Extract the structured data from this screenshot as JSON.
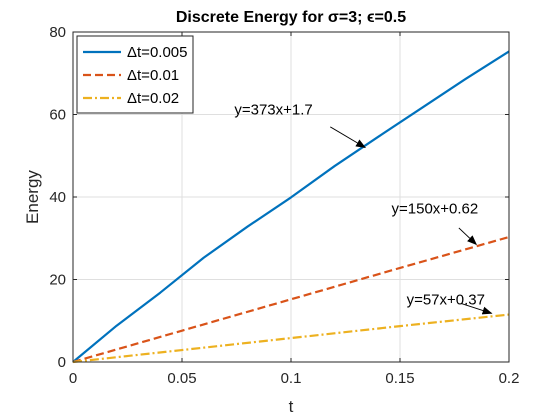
{
  "chart_data": {
    "type": "line",
    "title": "Discrete Energy for σ=3; ϵ=0.5",
    "xlabel": "t",
    "ylabel": "Energy",
    "xlim": [
      0,
      0.2
    ],
    "ylim": [
      0,
      80
    ],
    "xticks": [
      0,
      0.05,
      0.1,
      0.15,
      0.2
    ],
    "xtick_labels": [
      "0",
      "0.05",
      "0.1",
      "0.15",
      "0.2"
    ],
    "yticks": [
      0,
      20,
      40,
      60,
      80
    ],
    "ytick_labels": [
      "0",
      "20",
      "40",
      "60",
      "80"
    ],
    "grid": true,
    "legend_position": "top-left",
    "series": [
      {
        "name": "Δt=0.005",
        "color": "#0072BD",
        "style": "solid",
        "x": [
          0,
          0.02,
          0.04,
          0.06,
          0.08,
          0.1,
          0.12,
          0.14,
          0.16,
          0.18,
          0.2
        ],
        "y": [
          0,
          8.8,
          16.8,
          25.3,
          32.8,
          39.9,
          47.5,
          54.6,
          61.6,
          68.6,
          75.3
        ]
      },
      {
        "name": "Δt=0.01",
        "color": "#D95319",
        "style": "dashed",
        "x": [
          0,
          0.05,
          0.1,
          0.15,
          0.2
        ],
        "y": [
          0,
          7.6,
          15.2,
          22.8,
          30.3
        ]
      },
      {
        "name": "Δt=0.02",
        "color": "#EDB120",
        "style": "dashdot",
        "x": [
          0,
          0.05,
          0.1,
          0.15,
          0.2
        ],
        "y": [
          0,
          2.9,
          5.8,
          8.7,
          11.5
        ]
      }
    ],
    "annotations": [
      {
        "text": "y=373x+1.7",
        "text_x": 0.092,
        "text_y": 60,
        "arrow_from": [
          0.118,
          57.0
        ],
        "arrow_to": [
          0.134,
          52.0
        ]
      },
      {
        "text": "y=150x+0.62",
        "text_x": 0.166,
        "text_y": 36,
        "arrow_from": [
          0.177,
          32.5
        ],
        "arrow_to": [
          0.185,
          28.5
        ]
      },
      {
        "text": "y=57x+0.37",
        "text_x": 0.171,
        "text_y": 14,
        "arrow_from": [
          0.178,
          14.2
        ],
        "arrow_to": [
          0.192,
          11.8
        ]
      }
    ]
  }
}
